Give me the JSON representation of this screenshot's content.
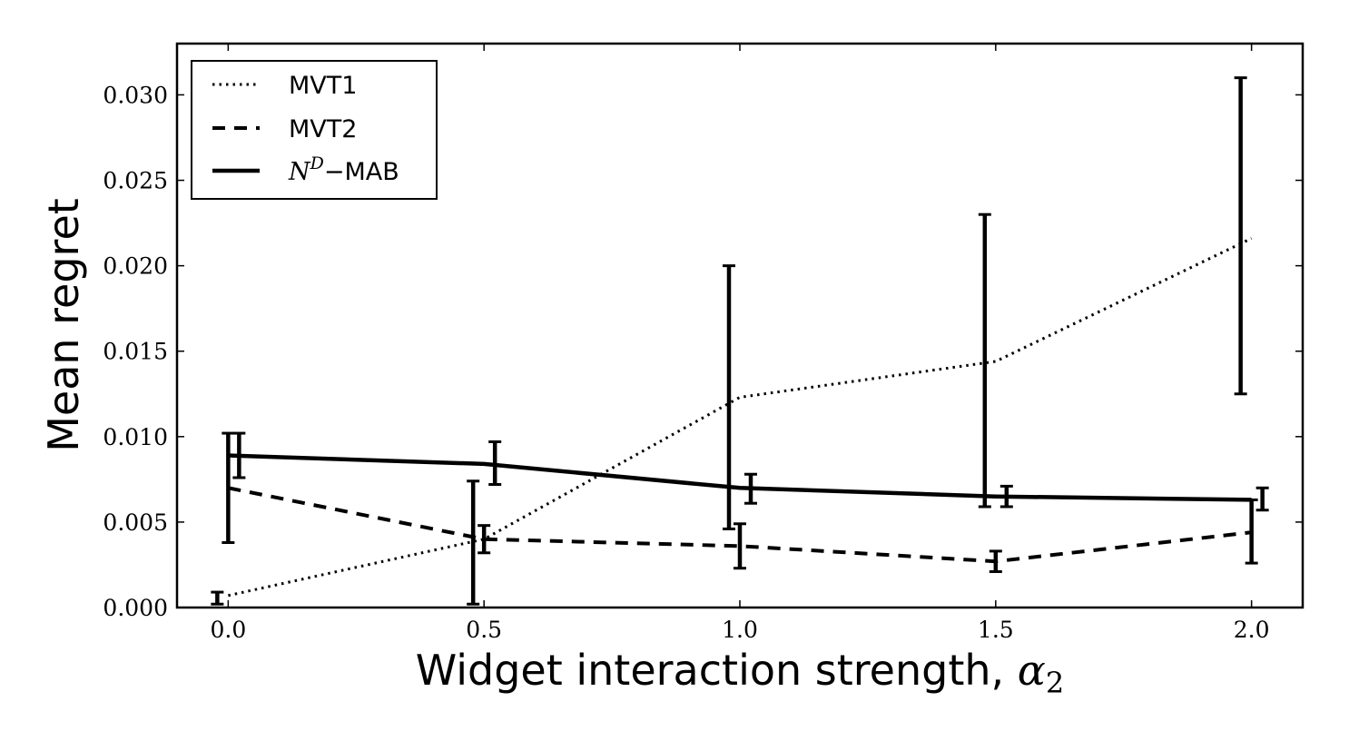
{
  "chart_data": {
    "type": "line",
    "xlabel": "Widget interaction strength, ",
    "xlabel_symbol": "α",
    "xlabel_subscript": "2",
    "ylabel": "Mean regret",
    "xlim": [
      -0.1,
      2.1
    ],
    "ylim": [
      0.0,
      0.033
    ],
    "x_ticks": [
      0.0,
      0.5,
      1.0,
      1.5,
      2.0
    ],
    "x_tick_labels": [
      "0.0",
      "0.5",
      "1.0",
      "1.5",
      "2.0"
    ],
    "y_ticks": [
      0.0,
      0.005,
      0.01,
      0.015,
      0.02,
      0.025,
      0.03
    ],
    "y_tick_labels": [
      "0.000",
      "0.005",
      "0.010",
      "0.015",
      "0.020",
      "0.025",
      "0.030"
    ],
    "grid": false,
    "legend_position": "top-left",
    "series": [
      {
        "name": "MVT1",
        "style": "dotted",
        "x": [
          0.0,
          0.5,
          1.0,
          1.5,
          2.0
        ],
        "values": [
          0.0007,
          0.004,
          0.0123,
          0.0144,
          0.0216
        ],
        "error_low": [
          0.0002,
          0.0002,
          0.0046,
          0.0059,
          0.0125
        ],
        "error_high": [
          0.0009,
          0.0074,
          0.02,
          0.023,
          0.031
        ]
      },
      {
        "name": "MVT2",
        "style": "dashed",
        "x": [
          0.0,
          0.5,
          1.0,
          1.5,
          2.0
        ],
        "values": [
          0.007,
          0.004,
          0.0036,
          0.0027,
          0.0044
        ],
        "error_low": [
          0.0038,
          0.0032,
          0.0023,
          0.0021,
          0.0026
        ],
        "error_high": [
          0.0102,
          0.0048,
          0.0049,
          0.0033,
          0.0063
        ]
      },
      {
        "name_prefix": "N",
        "name_superscript": "D",
        "name_suffix": "−MAB",
        "style": "solid",
        "x": [
          0.0,
          0.5,
          1.0,
          1.5,
          2.0
        ],
        "values": [
          0.0089,
          0.0084,
          0.007,
          0.0065,
          0.0063
        ],
        "error_low": [
          0.0076,
          0.0072,
          0.0061,
          0.0059,
          0.0057
        ],
        "error_high": [
          0.0102,
          0.0097,
          0.0078,
          0.0071,
          0.007
        ]
      }
    ]
  }
}
